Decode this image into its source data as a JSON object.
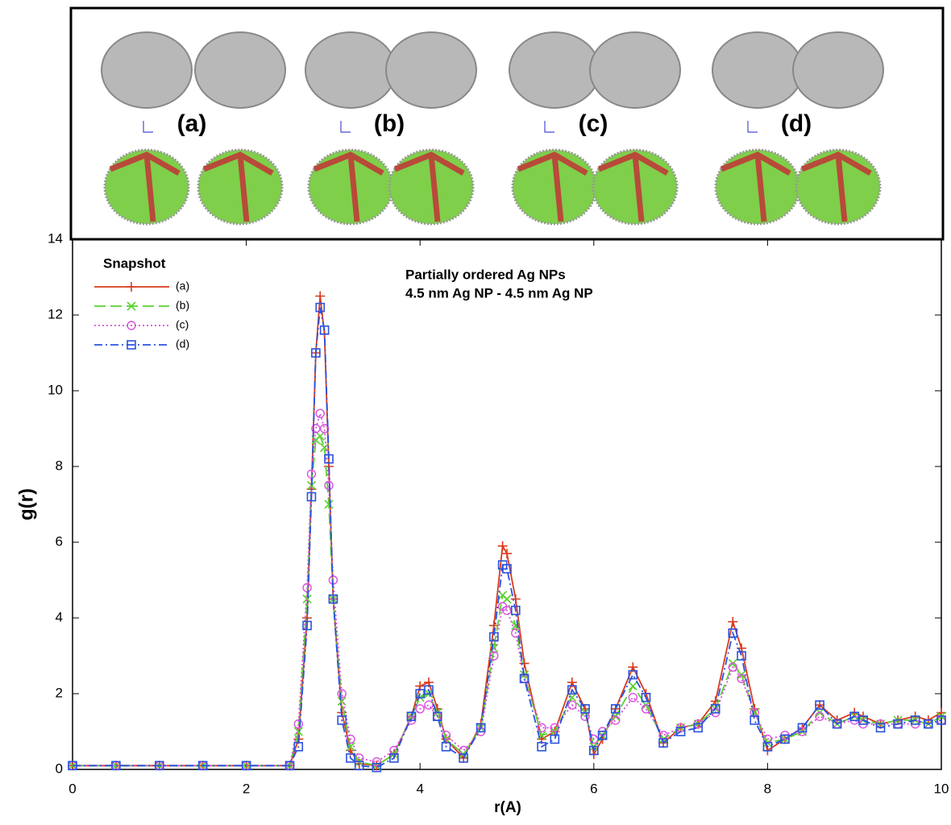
{
  "panel_labels": [
    "(a)",
    "(b)",
    "(c)",
    "(d)"
  ],
  "chart_data": {
    "type": "line",
    "annotations": [
      "Partially ordered Ag NPs",
      "4.5 nm Ag NP - 4.5 nm Ag NP"
    ],
    "legend_title": "Snapshot",
    "xlabel": "r(A)",
    "ylabel": "g(r)",
    "xlim": [
      0,
      10
    ],
    "ylim": [
      0,
      14
    ],
    "xticks": [
      0,
      2,
      4,
      6,
      8,
      10
    ],
    "yticks": [
      0,
      2,
      4,
      6,
      8,
      10,
      12,
      14
    ],
    "grid": false,
    "legend": "upper left",
    "x": [
      0,
      0.5,
      1,
      1.5,
      2,
      2.5,
      2.6,
      2.7,
      2.75,
      2.8,
      2.85,
      2.9,
      2.95,
      3.0,
      3.1,
      3.2,
      3.3,
      3.5,
      3.7,
      3.9,
      4.0,
      4.1,
      4.2,
      4.3,
      4.5,
      4.7,
      4.85,
      4.95,
      5.0,
      5.1,
      5.2,
      5.4,
      5.55,
      5.75,
      5.9,
      6.0,
      6.1,
      6.25,
      6.45,
      6.6,
      6.8,
      7.0,
      7.2,
      7.4,
      7.6,
      7.7,
      7.85,
      8.0,
      8.2,
      8.4,
      8.6,
      8.8,
      9.0,
      9.1,
      9.3,
      9.5,
      9.7,
      9.85,
      10.0
    ],
    "series": [
      {
        "name": "(a)",
        "color": "#d93a1e",
        "marker": "plus",
        "linestyle": "solid",
        "values": [
          0.1,
          0.1,
          0.1,
          0.1,
          0.1,
          0.1,
          0.8,
          4.0,
          7.4,
          11.0,
          12.5,
          11.5,
          8.0,
          4.5,
          1.5,
          0.5,
          0.15,
          0.1,
          0.4,
          1.4,
          2.2,
          2.3,
          1.6,
          0.8,
          0.3,
          1.2,
          3.8,
          5.9,
          5.7,
          4.5,
          2.8,
          0.8,
          1.0,
          2.3,
          1.6,
          0.4,
          0.8,
          1.6,
          2.7,
          2.0,
          0.7,
          1.1,
          1.2,
          1.8,
          3.9,
          3.2,
          1.6,
          0.5,
          0.8,
          1.1,
          1.7,
          1.3,
          1.5,
          1.4,
          1.2,
          1.3,
          1.4,
          1.3,
          1.5
        ]
      },
      {
        "name": "(b)",
        "color": "#5ad12e",
        "marker": "cross",
        "linestyle": "dashed",
        "values": [
          0.1,
          0.1,
          0.1,
          0.1,
          0.1,
          0.1,
          1.0,
          4.5,
          7.5,
          8.7,
          8.8,
          8.5,
          7.0,
          4.5,
          1.8,
          0.6,
          0.2,
          0.1,
          0.4,
          1.4,
          1.9,
          2.0,
          1.5,
          0.8,
          0.4,
          1.1,
          3.2,
          4.6,
          4.5,
          3.8,
          2.5,
          0.9,
          1.0,
          1.9,
          1.5,
          0.6,
          0.9,
          1.4,
          2.2,
          1.7,
          0.8,
          1.1,
          1.2,
          1.6,
          2.8,
          2.5,
          1.5,
          0.7,
          0.8,
          1.0,
          1.5,
          1.2,
          1.4,
          1.3,
          1.2,
          1.3,
          1.3,
          1.2,
          1.4
        ]
      },
      {
        "name": "(c)",
        "color": "#d94fe0",
        "marker": "circle",
        "linestyle": "dotted",
        "values": [
          0.1,
          0.1,
          0.1,
          0.1,
          0.1,
          0.1,
          1.2,
          4.8,
          7.8,
          9.0,
          9.4,
          9.0,
          7.5,
          5.0,
          2.0,
          0.8,
          0.3,
          0.2,
          0.5,
          1.3,
          1.6,
          1.7,
          1.4,
          0.9,
          0.5,
          1.0,
          3.0,
          4.3,
          4.2,
          3.6,
          2.4,
          1.1,
          1.1,
          1.7,
          1.4,
          0.8,
          1.0,
          1.3,
          1.9,
          1.6,
          0.9,
          1.1,
          1.2,
          1.5,
          2.7,
          2.4,
          1.5,
          0.8,
          0.9,
          1.0,
          1.4,
          1.2,
          1.3,
          1.2,
          1.2,
          1.2,
          1.2,
          1.2,
          1.3
        ]
      },
      {
        "name": "(d)",
        "color": "#2a52e0",
        "marker": "square",
        "linestyle": "dashdot",
        "values": [
          0.1,
          0.1,
          0.1,
          0.1,
          0.1,
          0.1,
          0.6,
          3.8,
          7.2,
          11.0,
          12.2,
          11.6,
          8.2,
          4.5,
          1.3,
          0.3,
          0.1,
          0.05,
          0.3,
          1.4,
          2.0,
          2.1,
          1.4,
          0.6,
          0.3,
          1.1,
          3.5,
          5.4,
          5.3,
          4.2,
          2.4,
          0.6,
          0.8,
          2.1,
          1.6,
          0.5,
          0.9,
          1.6,
          2.5,
          1.9,
          0.7,
          1.0,
          1.1,
          1.6,
          3.6,
          3.0,
          1.3,
          0.6,
          0.8,
          1.1,
          1.7,
          1.2,
          1.4,
          1.3,
          1.1,
          1.2,
          1.3,
          1.2,
          1.3
        ]
      }
    ]
  }
}
